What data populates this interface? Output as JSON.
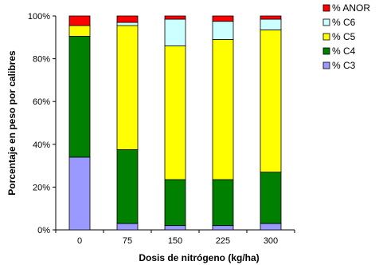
{
  "chart_data": {
    "type": "bar",
    "stacked": true,
    "normalized": true,
    "title": "",
    "xlabel": "Dosis de nitrógeno (kg/ha)",
    "ylabel": "Porcentaje en peso por calibres",
    "categories": [
      "0",
      "75",
      "150",
      "225",
      "300"
    ],
    "ylim": [
      0,
      100
    ],
    "yticks": [
      "0%",
      "20%",
      "40%",
      "60%",
      "80%",
      "100%"
    ],
    "grid": false,
    "legend_position": "top-right",
    "series": [
      {
        "name": "% C3",
        "color": "#9999FF",
        "values": [
          34,
          3,
          2,
          2,
          3
        ]
      },
      {
        "name": "% C4",
        "color": "#008000",
        "values": [
          56.5,
          34.5,
          21.5,
          21.5,
          24
        ]
      },
      {
        "name": "% C5",
        "color": "#FFFF00",
        "values": [
          5,
          58,
          62.5,
          65.5,
          66.5
        ]
      },
      {
        "name": "% C6",
        "color": "#CCFFFF",
        "values": [
          0,
          1.5,
          12.5,
          8.5,
          5
        ]
      },
      {
        "name": "% ANOR",
        "color": "#FF0000",
        "values": [
          4.5,
          3,
          1.5,
          2.5,
          1.5
        ]
      }
    ]
  }
}
